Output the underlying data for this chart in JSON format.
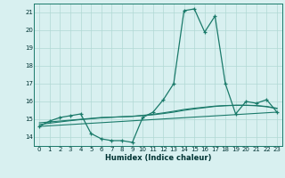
{
  "xlabel": "Humidex (Indice chaleur)",
  "background_color": "#d8f0f0",
  "grid_color": "#b0d8d4",
  "line_color": "#1a7a6a",
  "xlim": [
    -0.5,
    23.5
  ],
  "ylim": [
    13.5,
    21.5
  ],
  "yticks": [
    14,
    15,
    16,
    17,
    18,
    19,
    20,
    21
  ],
  "xticks": [
    0,
    1,
    2,
    3,
    4,
    5,
    6,
    7,
    8,
    9,
    10,
    11,
    12,
    13,
    14,
    15,
    16,
    17,
    18,
    19,
    20,
    21,
    22,
    23
  ],
  "main_x": [
    0,
    1,
    2,
    3,
    4,
    5,
    6,
    7,
    8,
    9,
    10,
    11,
    12,
    13,
    14,
    15,
    16,
    17,
    18,
    19,
    20,
    21,
    22,
    23
  ],
  "main_y": [
    14.6,
    14.9,
    15.1,
    15.2,
    15.3,
    14.2,
    13.9,
    13.8,
    13.8,
    13.7,
    15.1,
    15.4,
    16.1,
    17.0,
    21.1,
    21.2,
    19.9,
    20.8,
    17.0,
    15.3,
    16.0,
    15.9,
    16.1,
    15.4
  ],
  "line1_x": [
    0,
    1,
    2,
    3,
    4,
    5,
    6,
    7,
    8,
    9,
    10,
    11,
    12,
    13,
    14,
    15,
    16,
    17,
    18,
    19,
    20,
    21,
    22,
    23
  ],
  "line1_y": [
    14.8,
    14.85,
    14.9,
    14.95,
    15.0,
    15.05,
    15.1,
    15.12,
    15.14,
    15.16,
    15.2,
    15.25,
    15.32,
    15.4,
    15.5,
    15.58,
    15.65,
    15.72,
    15.76,
    15.78,
    15.78,
    15.76,
    15.7,
    15.6
  ],
  "line2_x": [
    0,
    1,
    2,
    3,
    4,
    5,
    6,
    7,
    8,
    9,
    10,
    11,
    12,
    13,
    14,
    15,
    16,
    17,
    18,
    19,
    20,
    21,
    22,
    23
  ],
  "line2_y": [
    14.7,
    14.78,
    14.85,
    14.92,
    14.98,
    15.03,
    15.08,
    15.11,
    15.14,
    15.17,
    15.22,
    15.28,
    15.36,
    15.45,
    15.55,
    15.62,
    15.68,
    15.74,
    15.77,
    15.79,
    15.79,
    15.77,
    15.72,
    15.62
  ],
  "line3_x": [
    0,
    23
  ],
  "line3_y": [
    14.6,
    15.4
  ]
}
